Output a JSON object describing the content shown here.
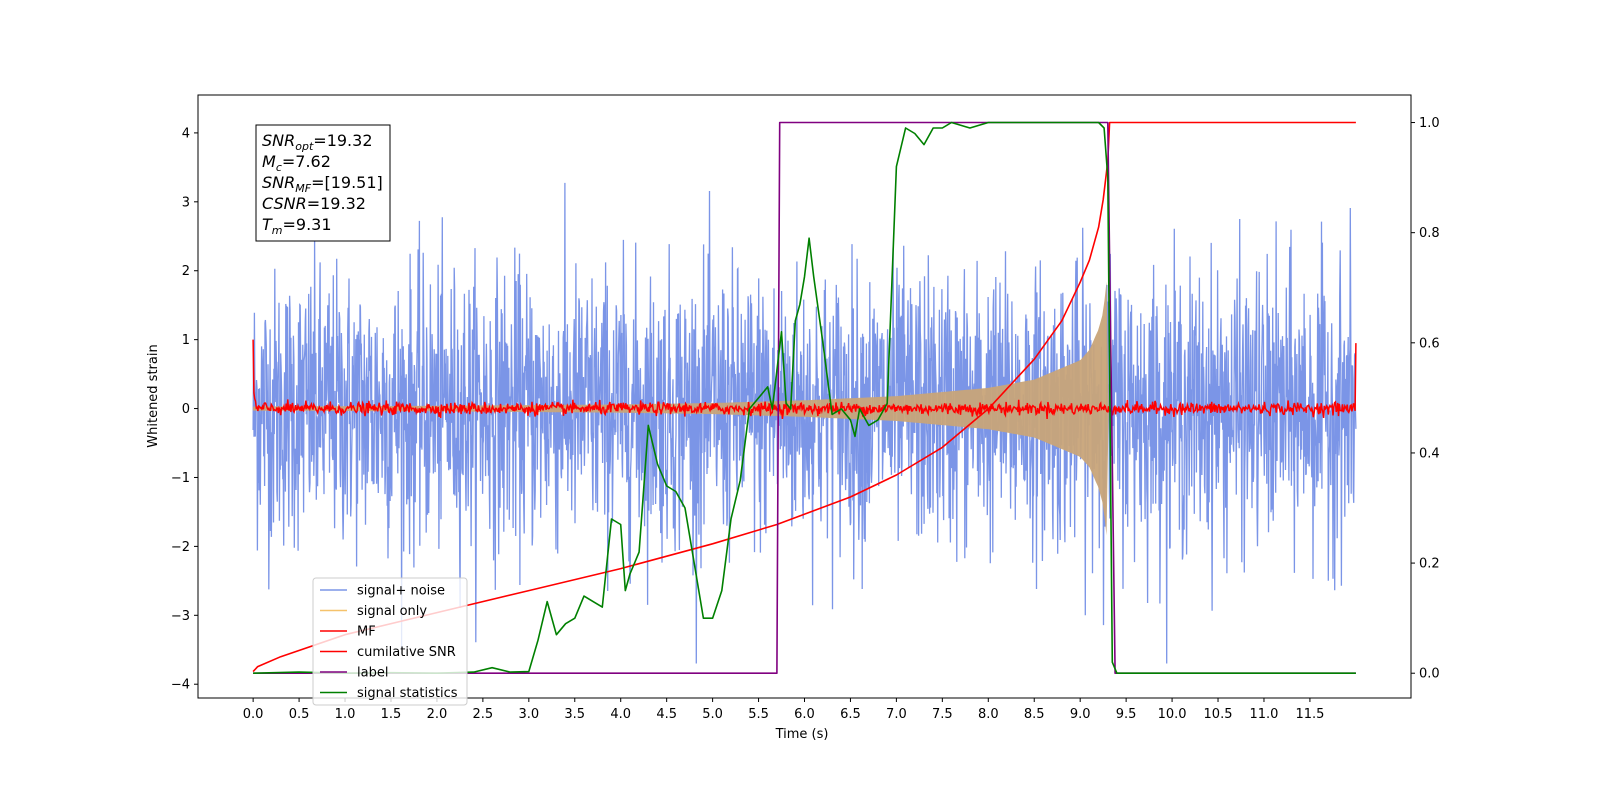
{
  "chart_data": {
    "type": "line",
    "xlabel": "Time (s)",
    "ylabel": "Whitened strain",
    "xlim": [
      -0.6,
      12.6
    ],
    "ylim": [
      -4.2,
      4.55
    ],
    "ylim_right": [
      -0.045,
      1.05
    ],
    "x_ticks": [
      "0.0",
      "0.5",
      "1.0",
      "1.5",
      "2.0",
      "2.5",
      "3.0",
      "3.5",
      "4.0",
      "4.5",
      "5.0",
      "5.5",
      "6.0",
      "6.5",
      "7.0",
      "7.5",
      "8.0",
      "8.5",
      "9.0",
      "9.5",
      "10.0",
      "10.5",
      "11.0",
      "11.5"
    ],
    "y_ticks_left": [
      "4",
      "3",
      "2",
      "1",
      "0",
      "−1",
      "−2",
      "−3",
      "−4"
    ],
    "y_ticks_right": [
      "1.0",
      "0.8",
      "0.6",
      "0.4",
      "0.2",
      "0.0"
    ],
    "annotation": [
      {
        "base": "SNR",
        "sub": "opt",
        "value": "=19.32"
      },
      {
        "base": "M",
        "sub": "c",
        "value": "=7.62"
      },
      {
        "base": "SNR",
        "sub": "MF",
        "value": "=[19.51]"
      },
      {
        "base": "CSNR",
        "sub": "",
        "value": "=19.32"
      },
      {
        "base": "T",
        "sub": "m",
        "value": "=9.31"
      }
    ],
    "legend": {
      "placement": "lower-left",
      "entries": [
        {
          "label": "signal+ noise",
          "color": "#7b95e7"
        },
        {
          "label": "signal only",
          "color": "#f5c26b"
        },
        {
          "label": "MF",
          "color": "#ff0000"
        },
        {
          "label": "cumilative SNR",
          "color": "#ff0000"
        },
        {
          "label": "label",
          "color": "#800080"
        },
        {
          "label": "signal statistics",
          "color": "#008000"
        }
      ]
    },
    "series": [
      {
        "name": "signal+ noise",
        "axis": "left",
        "color": "#7b95e7",
        "generator": {
          "x_start": 0.0,
          "x_end": 12.0,
          "noise_sigma": 1.0,
          "clip": [
            -3.7,
            4.2
          ]
        }
      },
      {
        "name": "signal only",
        "axis": "left",
        "color": "#c8a479",
        "envelope_x": [
          0.0,
          1.0,
          2.0,
          3.0,
          4.0,
          5.0,
          6.0,
          7.0,
          8.0,
          8.5,
          9.0,
          9.1,
          9.2,
          9.25,
          9.3,
          9.31
        ],
        "envelope_amp": [
          0.03,
          0.035,
          0.04,
          0.05,
          0.06,
          0.08,
          0.12,
          0.18,
          0.3,
          0.42,
          0.7,
          0.85,
          1.15,
          1.4,
          2.0,
          0.0
        ]
      },
      {
        "name": "MF",
        "axis": "left",
        "color": "#ff0000",
        "generator": {
          "x_start": 0.0,
          "x_end": 12.0,
          "noise_sigma": 0.045,
          "edge_start": 1.0,
          "edge_end": 0.95
        }
      },
      {
        "name": "cumilative SNR",
        "axis": "right",
        "color": "#ff0000",
        "x": [
          0.0,
          0.05,
          0.3,
          1.0,
          2.0,
          3.0,
          4.0,
          5.0,
          5.7,
          6.5,
          7.0,
          7.5,
          8.0,
          8.5,
          8.8,
          9.0,
          9.1,
          9.2,
          9.25,
          9.3,
          9.32,
          12.0
        ],
        "y": [
          0.003,
          0.012,
          0.03,
          0.07,
          0.11,
          0.15,
          0.19,
          0.235,
          0.27,
          0.32,
          0.36,
          0.41,
          0.48,
          0.57,
          0.64,
          0.71,
          0.75,
          0.81,
          0.86,
          0.93,
          1.0,
          1.0
        ]
      },
      {
        "name": "label",
        "axis": "right",
        "color": "#800080",
        "x": [
          0.0,
          5.7,
          5.73,
          9.3,
          9.38,
          12.0
        ],
        "y": [
          0.0,
          0.0,
          1.0,
          1.0,
          0.0,
          0.0
        ]
      },
      {
        "name": "signal statistics",
        "axis": "right",
        "color": "#008000",
        "x": [
          0.0,
          0.5,
          1.0,
          1.5,
          2.0,
          2.4,
          2.6,
          2.8,
          3.0,
          3.1,
          3.2,
          3.3,
          3.4,
          3.5,
          3.6,
          3.7,
          3.8,
          3.9,
          4.0,
          4.05,
          4.1,
          4.2,
          4.3,
          4.4,
          4.5,
          4.6,
          4.7,
          4.8,
          4.9,
          5.0,
          5.1,
          5.2,
          5.3,
          5.4,
          5.5,
          5.6,
          5.65,
          5.7,
          5.75,
          5.8,
          5.85,
          5.9,
          5.95,
          6.0,
          6.05,
          6.1,
          6.2,
          6.3,
          6.4,
          6.5,
          6.55,
          6.6,
          6.7,
          6.8,
          6.9,
          7.0,
          7.1,
          7.2,
          7.3,
          7.4,
          7.5,
          7.6,
          7.8,
          8.0,
          8.5,
          9.0,
          9.2,
          9.26,
          9.3,
          9.35,
          9.4,
          10.0,
          11.0,
          12.0
        ],
        "y": [
          0.0,
          0.002,
          0.0,
          0.001,
          0.0,
          0.002,
          0.01,
          0.002,
          0.003,
          0.06,
          0.13,
          0.07,
          0.09,
          0.1,
          0.14,
          0.13,
          0.12,
          0.28,
          0.27,
          0.15,
          0.18,
          0.22,
          0.45,
          0.38,
          0.34,
          0.33,
          0.3,
          0.2,
          0.1,
          0.1,
          0.15,
          0.28,
          0.35,
          0.48,
          0.5,
          0.52,
          0.48,
          0.55,
          0.62,
          0.49,
          0.48,
          0.64,
          0.67,
          0.72,
          0.79,
          0.72,
          0.6,
          0.47,
          0.48,
          0.46,
          0.43,
          0.48,
          0.45,
          0.46,
          0.49,
          0.92,
          0.99,
          0.98,
          0.96,
          0.99,
          0.99,
          1.0,
          0.99,
          1.0,
          1.0,
          1.0,
          1.0,
          0.99,
          0.9,
          0.02,
          0.0,
          0.0,
          0.0,
          0.0
        ]
      }
    ]
  }
}
